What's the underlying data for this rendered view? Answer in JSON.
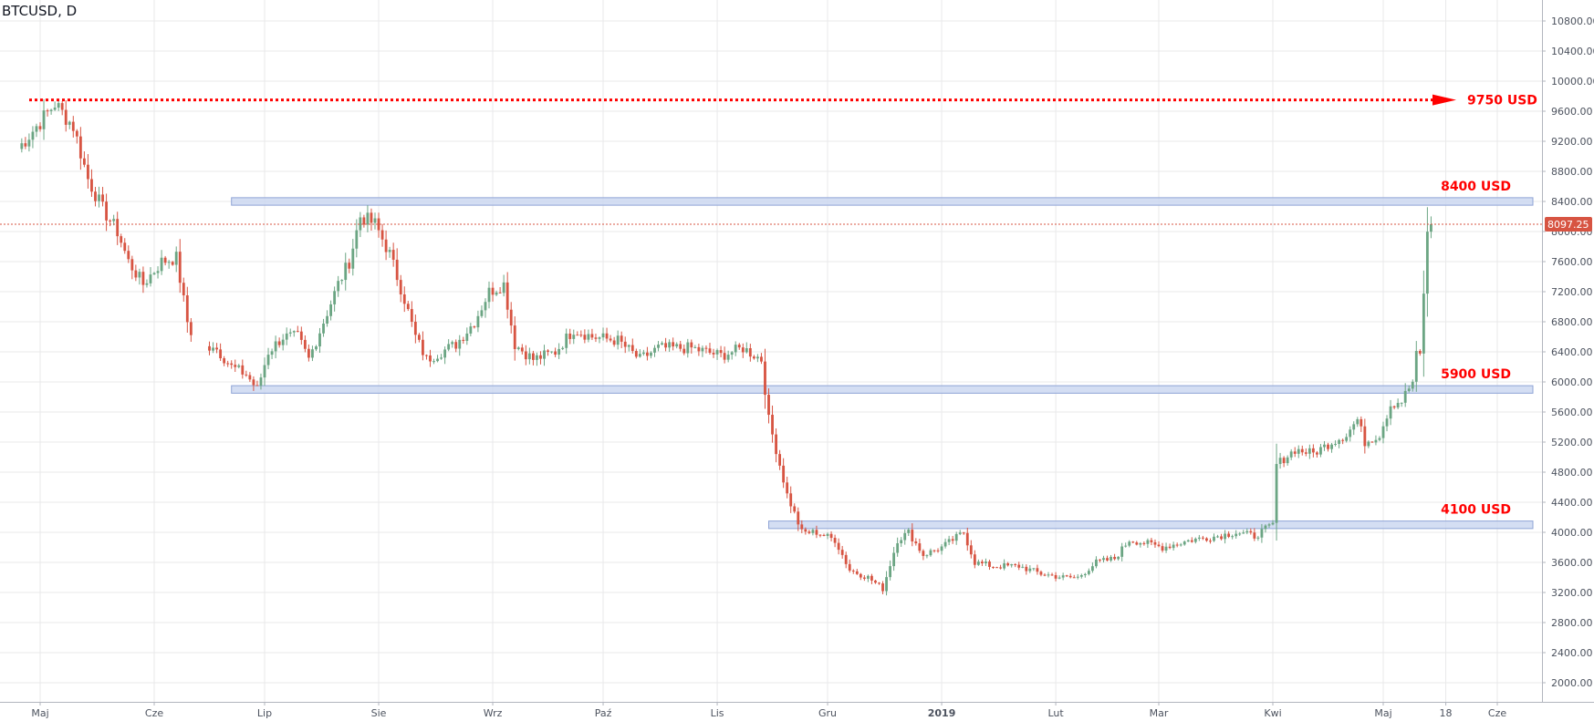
{
  "symbol_title": "BTCUSD, D",
  "chart_data": {
    "type": "candlestick",
    "title": "BTCUSD, D",
    "ylim": [
      1800,
      11000
    ],
    "y_ticks": [
      2000,
      2400,
      2800,
      3200,
      3600,
      4000,
      4400,
      4800,
      5200,
      5600,
      6000,
      6400,
      6800,
      7200,
      7600,
      8000,
      8400,
      8800,
      9200,
      9600,
      10000,
      10400,
      10800
    ],
    "x_ticks": [
      {
        "label": "Maj",
        "date": "2018-05-01",
        "bold": false
      },
      {
        "label": "Cze",
        "date": "2018-06-01",
        "bold": false
      },
      {
        "label": "Lip",
        "date": "2018-07-01",
        "bold": false
      },
      {
        "label": "Sie",
        "date": "2018-08-01",
        "bold": false
      },
      {
        "label": "Wrz",
        "date": "2018-09-01",
        "bold": false
      },
      {
        "label": "Paź",
        "date": "2018-10-01",
        "bold": false
      },
      {
        "label": "Lis",
        "date": "2018-11-01",
        "bold": false
      },
      {
        "label": "Gru",
        "date": "2018-12-01",
        "bold": false
      },
      {
        "label": "2019",
        "date": "2019-01-01",
        "bold": true
      },
      {
        "label": "Lut",
        "date": "2019-02-01",
        "bold": false
      },
      {
        "label": "Mar",
        "date": "2019-03-01",
        "bold": false
      },
      {
        "label": "Kwi",
        "date": "2019-04-01",
        "bold": false
      },
      {
        "label": "Maj",
        "date": "2019-05-01",
        "bold": false
      },
      {
        "label": "18",
        "date": "2019-05-18",
        "bold": false
      },
      {
        "label": "Cze",
        "date": "2019-06-01",
        "bold": false
      }
    ],
    "current_price": {
      "value": 8097.25,
      "label": "8097.25"
    },
    "resistance_zones": [
      {
        "label": "8400 USD",
        "low": 8350,
        "high": 8450,
        "from": "2018-06-22"
      },
      {
        "label": "5900 USD",
        "low": 5850,
        "high": 5950,
        "from": "2018-06-22"
      },
      {
        "label": "4100 USD",
        "low": 4050,
        "high": 4150,
        "from": "2018-11-15"
      }
    ],
    "target_line": {
      "label": "9750 USD",
      "value": 9750
    },
    "colors": {
      "up": "#6ba583",
      "down": "#d75442",
      "zone_fill": "#c9d6f0",
      "zone_border": "#8fa4d6",
      "annotation": "#ff0000",
      "grid": "#e9e9ea"
    },
    "anchors": [
      [
        "2018-04-25",
        9100
      ],
      [
        "2018-05-05",
        9700
      ],
      [
        "2018-05-10",
        9400
      ],
      [
        "2018-05-14",
        8700
      ],
      [
        "2018-05-18",
        8300
      ],
      [
        "2018-05-22",
        8000
      ],
      [
        "2018-05-25",
        7600
      ],
      [
        "2018-05-29",
        7300
      ],
      [
        "2018-06-03",
        7600
      ],
      [
        "2018-06-07",
        7650
      ],
      [
        "2018-06-10",
        6800
      ],
      [
        "2018-06-13",
        6400
      ],
      [
        "2018-06-17",
        6500
      ],
      [
        "2018-06-22",
        6200
      ],
      [
        "2018-06-26",
        6100
      ],
      [
        "2018-06-29",
        5900
      ],
      [
        "2018-07-02",
        6400
      ],
      [
        "2018-07-06",
        6600
      ],
      [
        "2018-07-10",
        6600
      ],
      [
        "2018-07-13",
        6300
      ],
      [
        "2018-07-17",
        6800
      ],
      [
        "2018-07-21",
        7300
      ],
      [
        "2018-07-24",
        7600
      ],
      [
        "2018-07-27",
        8200
      ],
      [
        "2018-07-31",
        8100
      ],
      [
        "2018-08-04",
        7700
      ],
      [
        "2018-08-08",
        7100
      ],
      [
        "2018-08-11",
        6600
      ],
      [
        "2018-08-14",
        6300
      ],
      [
        "2018-08-18",
        6400
      ],
      [
        "2018-08-22",
        6500
      ],
      [
        "2018-08-27",
        6800
      ],
      [
        "2018-08-31",
        7200
      ],
      [
        "2018-09-04",
        7300
      ],
      [
        "2018-09-07",
        6500
      ],
      [
        "2018-09-12",
        6300
      ],
      [
        "2018-09-18",
        6400
      ],
      [
        "2018-09-23",
        6700
      ],
      [
        "2018-09-28",
        6600
      ],
      [
        "2018-10-05",
        6550
      ],
      [
        "2018-10-11",
        6300
      ],
      [
        "2018-10-16",
        6450
      ],
      [
        "2018-10-25",
        6450
      ],
      [
        "2018-11-02",
        6350
      ],
      [
        "2018-11-08",
        6450
      ],
      [
        "2018-11-13",
        6300
      ],
      [
        "2018-11-15",
        5500
      ],
      [
        "2018-11-20",
        4500
      ],
      [
        "2018-11-24",
        4000
      ],
      [
        "2018-11-28",
        4000
      ],
      [
        "2018-12-03",
        3900
      ],
      [
        "2018-12-07",
        3500
      ],
      [
        "2018-12-12",
        3400
      ],
      [
        "2018-12-16",
        3250
      ],
      [
        "2018-12-20",
        3900
      ],
      [
        "2018-12-23",
        4000
      ],
      [
        "2018-12-27",
        3700
      ],
      [
        "2019-01-01",
        3800
      ],
      [
        "2019-01-07",
        4000
      ],
      [
        "2019-01-10",
        3600
      ],
      [
        "2019-01-15",
        3550
      ],
      [
        "2019-01-22",
        3550
      ],
      [
        "2019-01-28",
        3450
      ],
      [
        "2019-02-03",
        3400
      ],
      [
        "2019-02-07",
        3400
      ],
      [
        "2019-02-12",
        3600
      ],
      [
        "2019-02-17",
        3650
      ],
      [
        "2019-02-21",
        3900
      ],
      [
        "2019-02-26",
        3850
      ],
      [
        "2019-03-02",
        3800
      ],
      [
        "2019-03-10",
        3900
      ],
      [
        "2019-03-17",
        3950
      ],
      [
        "2019-03-22",
        4000
      ],
      [
        "2019-03-27",
        3950
      ],
      [
        "2019-04-01",
        4100
      ],
      [
        "2019-04-02",
        4900
      ],
      [
        "2019-04-07",
        5100
      ],
      [
        "2019-04-12",
        5050
      ],
      [
        "2019-04-17",
        5200
      ],
      [
        "2019-04-21",
        5300
      ],
      [
        "2019-04-24",
        5500
      ],
      [
        "2019-04-26",
        5200
      ],
      [
        "2019-04-30",
        5300
      ],
      [
        "2019-05-03",
        5700
      ],
      [
        "2019-05-06",
        5750
      ],
      [
        "2019-05-09",
        6000
      ],
      [
        "2019-05-10",
        6350
      ],
      [
        "2019-05-11",
        6350
      ],
      [
        "2019-05-12",
        7200
      ],
      [
        "2019-05-13",
        7950
      ],
      [
        "2019-05-14",
        8097.25
      ]
    ]
  }
}
